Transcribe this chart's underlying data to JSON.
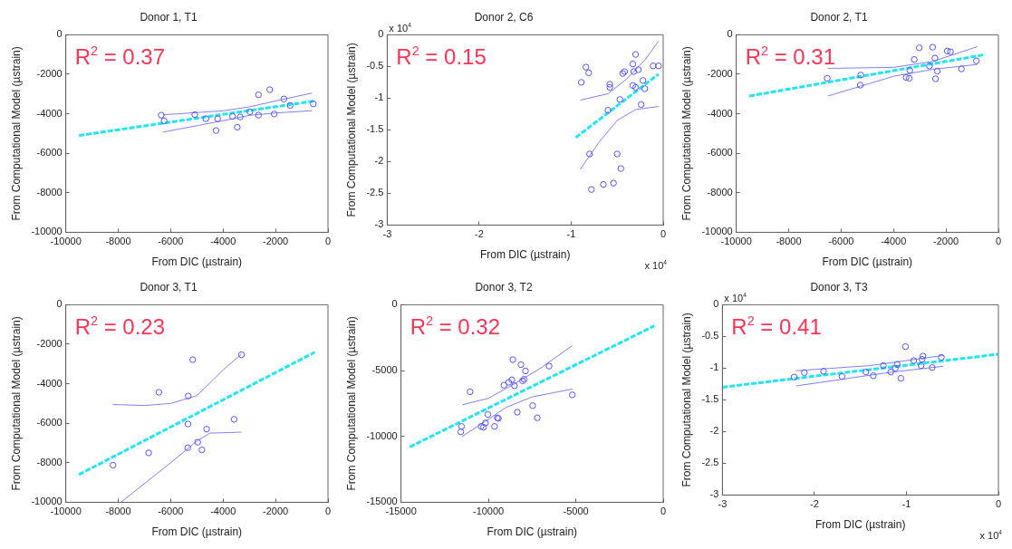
{
  "chart_data": [
    {
      "type": "scatter",
      "title": "Donor 1, T1",
      "xlabel": "From DIC (µstrain)",
      "ylabel": "From Computational Model (µstrain)",
      "xlim": [
        -10000,
        0
      ],
      "ylim": [
        -10000,
        0
      ],
      "xticks": [
        -10000,
        -8000,
        -6000,
        -4000,
        -2000,
        0
      ],
      "yticks": [
        -10000,
        -8000,
        -6000,
        -4000,
        -2000,
        0
      ],
      "annotations": [
        "R$^{2}$ = 0.37"
      ],
      "series": [
        {
          "type": "scatter",
          "marker": "circle",
          "color": "#5555ff",
          "x": [
            -6360,
            -6250,
            -5080,
            -4660,
            -4210,
            -4270,
            -3640,
            -3350,
            -3460,
            -2980,
            -2650,
            -2650,
            -2220,
            -2050,
            -1680,
            -1440,
            -560
          ],
          "values": [
            -4070,
            -4360,
            -4040,
            -4250,
            -4250,
            -4850,
            -4130,
            -4160,
            -4680,
            -3900,
            -3040,
            -4070,
            -2780,
            -4010,
            -3250,
            -3580,
            -3500
          ]
        },
        {
          "type": "line",
          "line_style": "dashed",
          "color": "#22e5f0",
          "x": [
            -9500,
            -500
          ],
          "values": [
            -5100,
            -3350
          ]
        },
        {
          "type": "line",
          "line_style": "solid",
          "color": "#8080f0",
          "x": [
            -6300,
            -4000,
            -3000,
            -2000,
            -600
          ],
          "values": [
            -4050,
            -3850,
            -3650,
            -3350,
            -2950
          ]
        },
        {
          "type": "line",
          "line_style": "solid",
          "color": "#8080f0",
          "x": [
            -6300,
            -4000,
            -3000,
            -2000,
            -600
          ],
          "values": [
            -4930,
            -4350,
            -4080,
            -3960,
            -3840
          ]
        }
      ]
    },
    {
      "type": "scatter",
      "title": "Donor 2, C6",
      "xlabel": "From DIC (µstrain)",
      "ylabel": "From Computational Model (µstrain)",
      "xlim": [
        -3,
        0
      ],
      "ylim": [
        -3,
        0
      ],
      "xticks": [
        -3,
        -2,
        -1,
        0
      ],
      "yticks": [
        -3,
        -2.5,
        -2,
        -1.5,
        -1,
        -0.5,
        0
      ],
      "annotations": [
        "R$^{2}$ = 0.15",
        "x 10$^{4}$",
        "x 10$^{4}$"
      ],
      "series": [
        {
          "type": "scatter",
          "marker": "circle",
          "color": "#5555ff",
          "x": [
            -0.89,
            -0.84,
            -0.81,
            -0.58,
            -0.58,
            -0.6,
            -0.8,
            -0.78,
            -0.65,
            -0.54,
            -0.5,
            -0.46,
            -0.47,
            -0.44,
            -0.42,
            -0.33,
            -0.3,
            -0.32,
            -0.27,
            -0.33,
            -0.3,
            -0.22,
            -0.2,
            -0.24,
            -0.11,
            -0.05
          ],
          "values": [
            -0.75,
            -0.51,
            -0.6,
            -0.78,
            -0.83,
            -1.19,
            -1.88,
            -2.44,
            -2.36,
            -2.34,
            -1.88,
            -2.11,
            -1.02,
            -0.61,
            -0.58,
            -0.46,
            -0.31,
            -0.58,
            -0.55,
            -0.8,
            -0.83,
            -0.72,
            -0.85,
            -1.1,
            -0.49,
            -0.49
          ]
        },
        {
          "type": "line",
          "line_style": "dashed",
          "color": "#22e5f0",
          "x": [
            -0.95,
            -0.05
          ],
          "values": [
            -1.62,
            -0.62
          ]
        },
        {
          "type": "line",
          "line_style": "solid",
          "color": "#8080f0",
          "x": [
            -0.9,
            -0.6,
            -0.4,
            -0.2,
            -0.05
          ],
          "values": [
            -1.03,
            -0.93,
            -0.7,
            -0.4,
            -0.1
          ]
        },
        {
          "type": "line",
          "line_style": "solid",
          "color": "#8080f0",
          "x": [
            -0.9,
            -0.7,
            -0.5,
            -0.3,
            -0.05
          ],
          "values": [
            -2.12,
            -1.7,
            -1.35,
            -1.18,
            -1.13
          ]
        }
      ]
    },
    {
      "type": "scatter",
      "title": "Donor 2, T1",
      "xlabel": "From DIC (µstrain)",
      "ylabel": "From Computational Model (µstrain)",
      "xlim": [
        -10000,
        0
      ],
      "ylim": [
        -10000,
        0
      ],
      "xticks": [
        -10000,
        -8000,
        -6000,
        -4000,
        -2000,
        0
      ],
      "yticks": [
        -10000,
        -8000,
        -6000,
        -4000,
        -2000,
        0
      ],
      "annotations": [
        "R$^{2}$ = 0.31"
      ],
      "series": [
        {
          "type": "scatter",
          "marker": "circle",
          "color": "#5555ff",
          "x": [
            -6530,
            -5250,
            -5270,
            -3520,
            -3400,
            -3380,
            -3210,
            -3020,
            -2510,
            -2630,
            -2420,
            -2330,
            -2400,
            -1950,
            -1830,
            -1410,
            -840
          ],
          "values": [
            -2200,
            -2040,
            -2550,
            -2160,
            -2200,
            -1800,
            -1250,
            -660,
            -630,
            -1580,
            -1180,
            -1840,
            -2230,
            -820,
            -860,
            -1730,
            -1320
          ]
        },
        {
          "type": "line",
          "line_style": "dashed",
          "color": "#22e5f0",
          "x": [
            -9500,
            -500
          ],
          "values": [
            -3100,
            -1000
          ]
        },
        {
          "type": "line",
          "line_style": "solid",
          "color": "#8080f0",
          "x": [
            -6500,
            -4000,
            -2500,
            -800
          ],
          "values": [
            -1700,
            -1650,
            -1350,
            -600
          ]
        },
        {
          "type": "line",
          "line_style": "solid",
          "color": "#8080f0",
          "x": [
            -6500,
            -4000,
            -2500,
            -800
          ],
          "values": [
            -3100,
            -2100,
            -1750,
            -1500
          ]
        }
      ]
    },
    {
      "type": "scatter",
      "title": "Donor 3, T1",
      "xlabel": "From DIC (µstrain)",
      "ylabel": "From Computational Model (µstrain)",
      "xlim": [
        -10000,
        0
      ],
      "ylim": [
        -10000,
        0
      ],
      "xticks": [
        -10000,
        -8000,
        -6000,
        -4000,
        -2000,
        0
      ],
      "yticks": [
        -10000,
        -8000,
        -6000,
        -4000,
        -2000,
        0
      ],
      "annotations": [
        "R$^{2}$ = 0.23"
      ],
      "series": [
        {
          "type": "scatter",
          "marker": "circle",
          "color": "#5555ff",
          "x": [
            -8200,
            -6840,
            -6450,
            -5330,
            -5340,
            -5350,
            -5160,
            -4970,
            -4810,
            -4630,
            -3580,
            -3300
          ],
          "values": [
            -8120,
            -7500,
            -4430,
            -4620,
            -6040,
            -7240,
            -2780,
            -6960,
            -7350,
            -6300,
            -5800,
            -2530
          ]
        },
        {
          "type": "line",
          "line_style": "dashed",
          "color": "#22e5f0",
          "x": [
            -9500,
            -500
          ],
          "values": [
            -8600,
            -2400
          ]
        },
        {
          "type": "line",
          "line_style": "solid",
          "color": "#8080f0",
          "x": [
            -8200,
            -7000,
            -6000,
            -5000,
            -4000,
            -3300
          ],
          "values": [
            -5050,
            -5100,
            -5000,
            -4600,
            -3300,
            -2500
          ]
        },
        {
          "type": "line",
          "line_style": "solid",
          "color": "#8080f0",
          "x": [
            -7900,
            -6000,
            -5000,
            -4500,
            -3300
          ],
          "values": [
            -10000,
            -8000,
            -6900,
            -6500,
            -6450
          ]
        }
      ]
    },
    {
      "type": "scatter",
      "title": "Donor 3, T2",
      "xlabel": "From DIC (µstrain)",
      "ylabel": "From Computational Model (µstrain)",
      "xlim": [
        -15000,
        0
      ],
      "ylim": [
        -15000,
        0
      ],
      "xticks": [
        -15000,
        -10000,
        -5000,
        0
      ],
      "yticks": [
        -15000,
        -10000,
        -5000,
        0
      ],
      "annotations": [
        "R$^{2}$ = 0.32"
      ],
      "series": [
        {
          "type": "scatter",
          "marker": "circle",
          "color": "#5555ff",
          "x": [
            -11540,
            -11580,
            -11050,
            -10420,
            -10280,
            -10170,
            -10030,
            -9650,
            -9490,
            -9430,
            -9110,
            -8840,
            -8660,
            -8600,
            -8510,
            -8350,
            -8140,
            -8050,
            -7960,
            -7880,
            -7470,
            -7200,
            -6530,
            -5200
          ],
          "values": [
            -9240,
            -9650,
            -6610,
            -9240,
            -9300,
            -8980,
            -8330,
            -9240,
            -8590,
            -8630,
            -6110,
            -5890,
            -5700,
            -4170,
            -6150,
            -8160,
            -4550,
            -5780,
            -5660,
            -5030,
            -7660,
            -8590,
            -4660,
            -6840
          ]
        },
        {
          "type": "line",
          "line_style": "dashed",
          "color": "#22e5f0",
          "x": [
            -14500,
            -500
          ],
          "values": [
            -10800,
            -1600
          ]
        },
        {
          "type": "line",
          "line_style": "solid",
          "color": "#8080f0",
          "x": [
            -11500,
            -10000,
            -8500,
            -7000,
            -5200
          ],
          "values": [
            -7600,
            -7100,
            -6000,
            -4800,
            -3100
          ]
        },
        {
          "type": "line",
          "line_style": "solid",
          "color": "#8080f0",
          "x": [
            -11500,
            -10000,
            -9000,
            -7500,
            -5200
          ],
          "values": [
            -10000,
            -8700,
            -7800,
            -7000,
            -6400
          ]
        }
      ]
    },
    {
      "type": "scatter",
      "title": "Donor 3, T3",
      "xlabel": "From DIC (µstrain)",
      "ylabel": "From Computational Model (µstrain)",
      "xlim": [
        -3,
        0
      ],
      "ylim": [
        -3,
        0
      ],
      "xticks": [
        -3,
        -2,
        -1,
        0
      ],
      "yticks": [
        -3,
        -2.5,
        -2,
        -1.5,
        -1,
        -0.5,
        0
      ],
      "annotations": [
        "R$^{2}$ = 0.41",
        "x 10$^{4}$",
        "x 10$^{4}$"
      ],
      "series": [
        {
          "type": "scatter",
          "marker": "circle",
          "color": "#5555ff",
          "x": [
            -2.22,
            -2.11,
            -1.9,
            -1.7,
            -1.44,
            -1.36,
            -1.25,
            -1.17,
            -1.12,
            -1.1,
            -1.06,
            -1.01,
            -0.92,
            -0.82,
            -0.83,
            -0.84,
            -0.72,
            -0.62
          ],
          "values": [
            -1.14,
            -1.07,
            -1.05,
            -1.13,
            -1.06,
            -1.12,
            -0.96,
            -1.06,
            -1.0,
            -0.94,
            -1.16,
            -0.66,
            -0.88,
            -0.81,
            -0.86,
            -0.96,
            -0.99,
            -0.83
          ]
        },
        {
          "type": "line",
          "line_style": "dashed",
          "color": "#22e5f0",
          "x": [
            -3,
            0
          ],
          "values": [
            -1.3,
            -0.78
          ]
        },
        {
          "type": "line",
          "line_style": "solid",
          "color": "#8080f0",
          "x": [
            -2.2,
            -1.4,
            -0.6
          ],
          "values": [
            -1.04,
            -0.96,
            -0.8
          ]
        },
        {
          "type": "line",
          "line_style": "solid",
          "color": "#8080f0",
          "x": [
            -2.2,
            -1.2,
            -0.6
          ],
          "values": [
            -1.28,
            -1.07,
            -0.97
          ]
        }
      ]
    }
  ]
}
